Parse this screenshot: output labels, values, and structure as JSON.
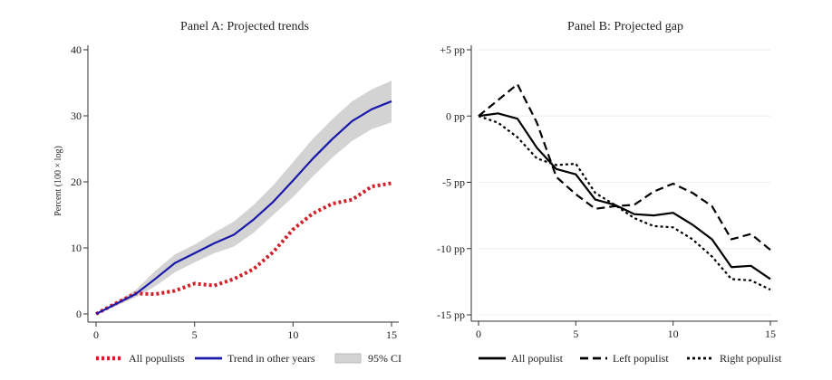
{
  "chart_data": [
    {
      "type": "line",
      "title": "Panel A: Projected trends",
      "xlabel": "",
      "ylabel": "Percent (100 × log)",
      "xlim": [
        0,
        15
      ],
      "ylim": [
        0,
        40
      ],
      "xticks": [
        "0",
        "5",
        "10",
        "15"
      ],
      "yticks": [
        "0",
        "10",
        "20",
        "30",
        "40"
      ],
      "grid": false,
      "legend_position": "bottom",
      "x": [
        0,
        1,
        2,
        3,
        4,
        5,
        6,
        7,
        8,
        9,
        10,
        11,
        12,
        13,
        14,
        15
      ],
      "series": [
        {
          "name": "All populists",
          "color": "#d0202a",
          "style": "dotted",
          "values": [
            0,
            1.6,
            3.1,
            3.0,
            3.5,
            4.6,
            4.3,
            5.3,
            6.8,
            9.4,
            12.8,
            15.2,
            16.7,
            17.3,
            19.3,
            19.8
          ]
        },
        {
          "name": "Trend in other years",
          "color": "#1a1aaa",
          "style": "solid",
          "values": [
            0,
            1.5,
            3.0,
            5.3,
            7.7,
            9.2,
            10.7,
            12.0,
            14.3,
            17.0,
            20.2,
            23.5,
            26.5,
            29.2,
            31.0,
            32.2
          ]
        }
      ],
      "band": {
        "name": "95% CI",
        "color": "#d3d3d3",
        "lower": [
          0,
          1.2,
          2.5,
          4.2,
          6.3,
          7.8,
          9.2,
          10.2,
          12.3,
          15.0,
          17.7,
          20.8,
          23.7,
          26.2,
          28.0,
          29.0
        ],
        "upper": [
          0,
          1.8,
          3.6,
          6.5,
          9.0,
          10.5,
          12.3,
          14.0,
          16.5,
          19.5,
          23.0,
          26.5,
          29.5,
          32.2,
          34.0,
          35.3
        ]
      }
    },
    {
      "type": "line",
      "title": "Panel B: Projected gap",
      "xlabel": "",
      "ylabel": "",
      "xlim": [
        0,
        15
      ],
      "ylim": [
        -15,
        5
      ],
      "xticks": [
        "0",
        "5",
        "10",
        "15"
      ],
      "yticks": [
        "-15 pp",
        "-10 pp",
        "-5 pp",
        "0 pp",
        "+5 pp"
      ],
      "grid": true,
      "legend_position": "bottom",
      "x": [
        0,
        1,
        2,
        3,
        4,
        5,
        6,
        7,
        8,
        9,
        10,
        11,
        12,
        13,
        14,
        15
      ],
      "series": [
        {
          "name": "All populist",
          "color": "#000000",
          "style": "solid",
          "values": [
            0,
            0.2,
            -0.2,
            -2.4,
            -4.0,
            -4.4,
            -6.3,
            -6.7,
            -7.4,
            -7.5,
            -7.3,
            -8.2,
            -9.3,
            -11.4,
            -11.3,
            -12.3
          ]
        },
        {
          "name": "Left populist",
          "color": "#000000",
          "style": "dashed",
          "values": [
            0,
            1.2,
            2.4,
            -0.5,
            -4.6,
            -5.9,
            -7.0,
            -6.8,
            -6.7,
            -5.7,
            -5.1,
            -5.8,
            -6.8,
            -9.3,
            -8.9,
            -10.1
          ]
        },
        {
          "name": "Right populist",
          "color": "#000000",
          "style": "dotted",
          "values": [
            0,
            -0.5,
            -1.6,
            -3.2,
            -3.7,
            -3.6,
            -5.8,
            -6.7,
            -7.7,
            -8.3,
            -8.4,
            -9.3,
            -10.6,
            -12.3,
            -12.4,
            -13.1
          ]
        }
      ]
    }
  ]
}
